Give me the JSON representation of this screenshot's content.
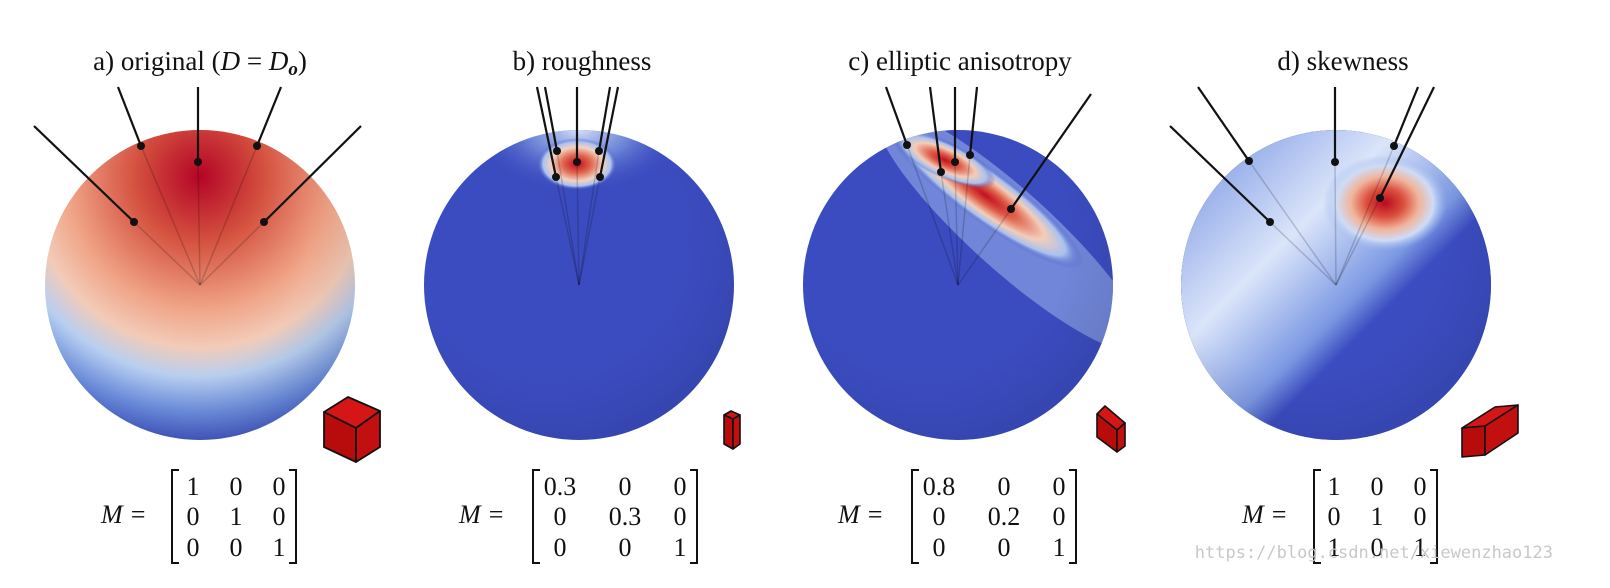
{
  "panels": [
    {
      "title": "a) original (",
      "title_math": {
        "lhs": "D",
        "eq": " = ",
        "rhs": "D",
        "sub": "o"
      },
      "title_close": ")",
      "matrix_label": "M =",
      "matrix": [
        [
          "1",
          "0",
          "0"
        ],
        [
          "0",
          "1",
          "0"
        ],
        [
          "0",
          "0",
          "1"
        ]
      ]
    },
    {
      "title": "b) roughness",
      "matrix_label": "M =",
      "matrix": [
        [
          "0.3",
          "0",
          "0"
        ],
        [
          "0",
          "0.3",
          "0"
        ],
        [
          "0",
          "0",
          "1"
        ]
      ]
    },
    {
      "title": "c) elliptic anisotropy",
      "matrix_label": "M =",
      "matrix": [
        [
          "0.8",
          "0",
          "0"
        ],
        [
          "0",
          "0.2",
          "0"
        ],
        [
          "0",
          "0",
          "1"
        ]
      ]
    },
    {
      "title": "d) skewness",
      "matrix_label": "M =",
      "matrix": [
        [
          "1",
          "0",
          "0"
        ],
        [
          "0",
          "1",
          "0"
        ],
        [
          "1",
          "0",
          "1"
        ]
      ]
    }
  ],
  "watermark": "https://blog.csdn.net/xiewenzhao123",
  "colors": {
    "hot": "#b40426",
    "warm": "#f4987a",
    "cool": "#3b4cc0",
    "ink": "#111111",
    "box": "#cc0d0d"
  }
}
